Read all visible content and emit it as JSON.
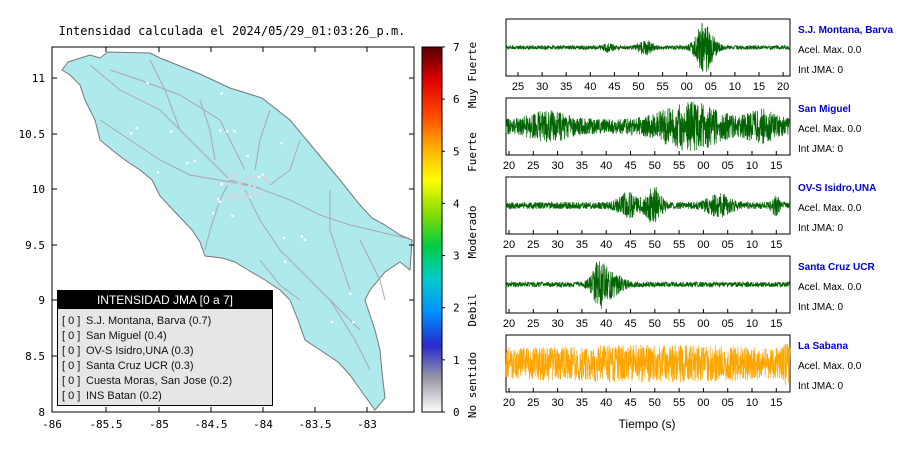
{
  "map": {
    "title": "Intensidad calculada el 2024/05/29_01:03:26_p.m.",
    "x_ticks": [
      "-86",
      "-85.5",
      "-85",
      "-84.5",
      "-84",
      "-83.5",
      "-83"
    ],
    "y_ticks": [
      "11",
      "10.5",
      "10",
      "9.5",
      "9",
      "8.5",
      "8"
    ],
    "land_color": "#aee9ec",
    "legend": {
      "header": "INTENSIDAD JMA [0 a 7]",
      "rows": [
        {
          "value": "[ 0 ]",
          "label": "S.J. Montana, Barva (0.7)"
        },
        {
          "value": "[ 0 ]",
          "label": "San Miguel (0.4)"
        },
        {
          "value": "[ 0 ]",
          "label": "OV-S Isidro,UNA (0.3)"
        },
        {
          "value": "[ 0 ]",
          "label": "Santa Cruz UCR (0.3)"
        },
        {
          "value": "[ 0 ]",
          "label": "Cuesta Moras, San Jose (0.2)"
        },
        {
          "value": "[ 0 ]",
          "label": "INS Batan (0.2)"
        }
      ]
    }
  },
  "colorbar": {
    "ticks": [
      "7",
      "6",
      "5",
      "4",
      "3",
      "2",
      "1",
      "0"
    ],
    "categories": [
      "Muy Fuerte",
      "Fuerte",
      "Moderado",
      "Debil",
      "No sentido"
    ],
    "colors": [
      "#ffffff",
      "#9a9aa8",
      "#2a2acc",
      "#0090ff",
      "#00cccc",
      "#00cc44",
      "#88dd00",
      "#ffff00",
      "#ffaa00",
      "#ff4400",
      "#dd0000",
      "#550000"
    ]
  },
  "chart_data": {
    "type": "line",
    "xlabel": "Tiempo (s)",
    "series": [
      {
        "name": "S.J. Montana, Barva",
        "accel_label": "Acel. Max. 0.0",
        "int_label": "Int JMA: 0",
        "color": "#006400",
        "name_color": "#0000cc",
        "ticks": [
          "25",
          "30",
          "35",
          "40",
          "45",
          "50",
          "55",
          "00",
          "05",
          "10",
          "15",
          "20"
        ],
        "bursts": [
          [
            0.49,
            0.25,
            0.025
          ],
          [
            0.7,
            0.95,
            0.035
          ],
          [
            0.36,
            0.15,
            0.02
          ]
        ],
        "base": 0.08
      },
      {
        "name": "San Miguel",
        "accel_label": "Acel. Max. 0.0",
        "int_label": "Int JMA: 0",
        "color": "#006400",
        "name_color": "#0000cc",
        "ticks": [
          "20",
          "25",
          "30",
          "35",
          "40",
          "45",
          "50",
          "55",
          "00",
          "05",
          "10",
          "15"
        ],
        "bursts": [
          [
            0.65,
            0.7,
            0.12
          ],
          [
            0.15,
            0.35,
            0.08
          ],
          [
            0.9,
            0.4,
            0.06
          ]
        ],
        "base": 0.3
      },
      {
        "name": "OV-S Isidro,UNA",
        "accel_label": "Acel. Max. 0.0",
        "int_label": "Int JMA: 0",
        "color": "#006400",
        "name_color": "#0000cc",
        "ticks": [
          "20",
          "25",
          "30",
          "35",
          "40",
          "45",
          "50",
          "55",
          "00",
          "05",
          "10",
          "15"
        ],
        "bursts": [
          [
            0.52,
            0.65,
            0.03
          ],
          [
            0.43,
            0.4,
            0.04
          ],
          [
            0.75,
            0.35,
            0.05
          ],
          [
            0.95,
            0.3,
            0.015
          ]
        ],
        "base": 0.14
      },
      {
        "name": "Santa Cruz UCR",
        "accel_label": "Acel. Max. 0.0",
        "int_label": "Int JMA: 0",
        "color": "#006400",
        "name_color": "#0000cc",
        "ticks": [
          "20",
          "25",
          "30",
          "35",
          "40",
          "45",
          "50",
          "55",
          "00",
          "05",
          "10",
          "15"
        ],
        "bursts": [
          [
            0.33,
            0.9,
            0.03
          ],
          [
            0.38,
            0.35,
            0.04
          ]
        ],
        "base": 0.1
      },
      {
        "name": "La Sabana",
        "accel_label": "Acel. Max. 0.0",
        "int_label": "Int JMA: 0",
        "color": "#ffa500",
        "name_color": "#0000cc",
        "ticks": [
          "20",
          "25",
          "30",
          "35",
          "40",
          "45",
          "50",
          "55",
          "00",
          "05",
          "10",
          "15"
        ],
        "bursts": [
          [
            0.5,
            0.2,
            0.5
          ],
          [
            0.99,
            0.7,
            0.01
          ]
        ],
        "base": 0.55
      }
    ]
  }
}
